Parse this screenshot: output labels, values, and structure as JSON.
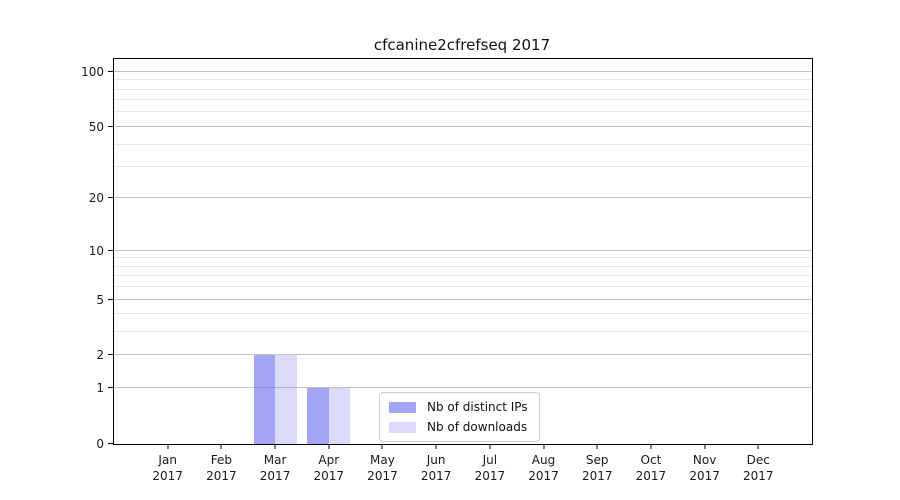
{
  "figure": {
    "background": "#ffffff"
  },
  "chart_data": {
    "type": "bar",
    "title": "cfcanine2cfrefseq 2017",
    "x_ticks": [
      {
        "month": "Jan",
        "year": "2017"
      },
      {
        "month": "Feb",
        "year": "2017"
      },
      {
        "month": "Mar",
        "year": "2017"
      },
      {
        "month": "Apr",
        "year": "2017"
      },
      {
        "month": "May",
        "year": "2017"
      },
      {
        "month": "Jun",
        "year": "2017"
      },
      {
        "month": "Jul",
        "year": "2017"
      },
      {
        "month": "Aug",
        "year": "2017"
      },
      {
        "month": "Sep",
        "year": "2017"
      },
      {
        "month": "Oct",
        "year": "2017"
      },
      {
        "month": "Nov",
        "year": "2017"
      },
      {
        "month": "Dec",
        "year": "2017"
      }
    ],
    "series": [
      {
        "name": "Nb of distinct IPs",
        "color": "rgba(108,108,240,0.62)",
        "values": [
          0,
          0,
          2,
          1,
          0,
          0,
          0,
          0,
          0,
          0,
          0,
          0
        ]
      },
      {
        "name": "Nb of downloads",
        "color": "rgba(108,108,240,0.25)",
        "values": [
          0,
          0,
          2,
          1,
          0,
          0,
          0,
          0,
          0,
          0,
          0,
          0
        ]
      }
    ],
    "yscale": {
      "type": "log1p",
      "top_value": 117.4
    },
    "y_major_ticks": [
      0,
      1,
      2,
      5,
      10,
      20,
      50,
      100
    ],
    "y_minor_gridlines": [
      3,
      4,
      6,
      7,
      8,
      9,
      30,
      40,
      60,
      70,
      80,
      90
    ],
    "grid": {
      "major_color": "#c3c3c3",
      "minor_color": "#e9e9e9"
    },
    "layout": {
      "x_slots": 13,
      "bar_width_frac": 0.4,
      "legend_position": "lower center"
    }
  }
}
